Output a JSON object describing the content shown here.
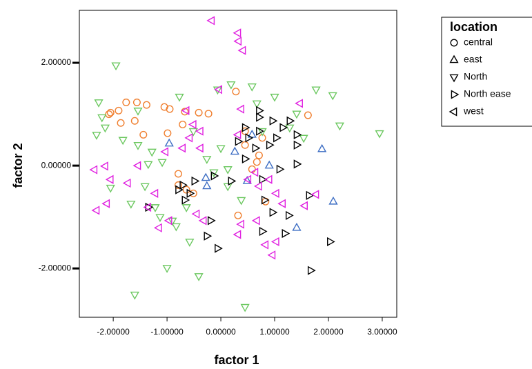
{
  "chart_data": {
    "type": "scatter",
    "x_label": "factor 1",
    "y_label": "factor 2",
    "xlim": [
      -2.63,
      3.27
    ],
    "ylim": [
      -2.95,
      3.02
    ],
    "xticks": [
      {
        "value": -2,
        "label": "-2.00000"
      },
      {
        "value": -1,
        "label": "-1.00000"
      },
      {
        "value": 0,
        "label": "0.00000"
      },
      {
        "value": 1,
        "label": "1.00000"
      },
      {
        "value": 2,
        "label": "2.00000"
      },
      {
        "value": 3,
        "label": "3.00000"
      }
    ],
    "yticks": [
      {
        "value": -2,
        "label": "-2.00000"
      },
      {
        "value": 0,
        "label": "0.00000"
      },
      {
        "value": 2,
        "label": "2.00000"
      }
    ],
    "legend_title": "location",
    "legend_position": "outside-right",
    "series": [
      {
        "name": "central",
        "color": "#f07f2f",
        "marker": "circle",
        "x": [
          -2.05,
          -1.9,
          -1.76,
          -1.56,
          -1.38,
          -1.05,
          -0.95,
          -0.67,
          -0.41,
          -2.08,
          -1.86,
          -1.6,
          -1.44,
          -0.99,
          -0.71,
          -0.79,
          -0.64,
          -0.79,
          -0.51,
          0.28,
          1.62,
          0.32,
          0.83,
          0.45,
          0.71,
          0.58,
          0.77,
          0.45,
          0.67,
          -0.23
        ],
        "values": [
          1.03,
          1.07,
          1.23,
          1.23,
          1.18,
          1.14,
          1.1,
          1.05,
          1.03,
          1.0,
          0.83,
          0.87,
          0.6,
          0.63,
          0.8,
          -0.16,
          -0.47,
          -0.38,
          -0.54,
          1.44,
          0.98,
          -0.97,
          -0.7,
          0.4,
          0.2,
          -0.07,
          0.54,
          0.67,
          0.07,
          1.01
        ]
      },
      {
        "name": "east",
        "color": "#3c6dc3",
        "marker": "triangle-up",
        "x": [
          -0.96,
          -0.28,
          -0.26,
          0.26,
          0.49,
          1.88,
          2.09,
          1.41,
          0.58,
          0.9
        ],
        "values": [
          0.43,
          -0.24,
          -0.4,
          0.27,
          -0.3,
          0.32,
          -0.7,
          -1.21,
          0.6,
          0
        ]
      },
      {
        "name": "North",
        "color": "#6cc860",
        "marker": "triangle-down",
        "x": [
          -1.95,
          -2.27,
          -2.15,
          -2.31,
          -1.82,
          -1.54,
          -1.28,
          -1.09,
          -2.05,
          -1.67,
          -1.41,
          -1.13,
          -1.0,
          -1.6,
          -0.41,
          -0.58,
          -0.9,
          -1.22,
          -0.26,
          -0.13,
          0,
          0.13,
          -0.06,
          0.19,
          0.58,
          0.67,
          1.0,
          1.41,
          1.77,
          2.08,
          2.21,
          2.95,
          0.45,
          -0.51,
          -0.77,
          -1.54,
          -2.21,
          -0.64,
          0.38,
          0.13,
          1.28,
          1.54,
          0.77,
          -1.35,
          -0.83
        ],
        "values": [
          1.95,
          1.23,
          0.74,
          0.6,
          0.5,
          0.4,
          0.27,
          0.07,
          -0.43,
          -0.74,
          -0.4,
          -1.0,
          -1.99,
          -2.51,
          -2.15,
          -1.48,
          -1.07,
          -0.81,
          0.13,
          -0.13,
          0.34,
          -0.07,
          1.48,
          1.58,
          1.54,
          1.21,
          1.34,
          1.01,
          1.48,
          1.37,
          0.78,
          0.63,
          -2.75,
          0.67,
          1.34,
          1.07,
          0.94,
          -0.81,
          -0.67,
          -0.4,
          0.74,
          0.54,
          0.67,
          0.03,
          -1.18
        ]
      },
      {
        "name": "North ease",
        "color": "#000000",
        "marker": "triangle-right",
        "x": [
          -0.71,
          -0.58,
          -0.79,
          -0.49,
          -0.67,
          0.45,
          0.51,
          0.64,
          0.45,
          0.71,
          0.96,
          1.15,
          1.28,
          1.41,
          1.03,
          0.71,
          0.32,
          0.9,
          1.41,
          1.41,
          1.09,
          0.77,
          0.19,
          -0.13,
          -0.19,
          -0.26,
          -0.06,
          0.81,
          0.96,
          1.26,
          0.77,
          1.19,
          1.64,
          2.03,
          1.67,
          -1.35,
          0.71
        ],
        "values": [
          -0.38,
          -0.54,
          -0.47,
          -0.3,
          -0.67,
          0.74,
          0.54,
          0.34,
          0.13,
          0.67,
          0.87,
          0.74,
          0.87,
          0.6,
          0.54,
          1.07,
          0.47,
          0.4,
          0.4,
          0.03,
          -0.07,
          -0.27,
          -0.3,
          -0.2,
          -1.07,
          -1.37,
          -1.61,
          -0.67,
          -0.91,
          -0.97,
          -1.28,
          -1.32,
          -0.58,
          -1.48,
          -2.04,
          -0.81,
          0.94
        ]
      },
      {
        "name": "west",
        "color": "#e020e0",
        "marker": "triangle-left",
        "x": [
          -0.17,
          0.32,
          0.33,
          0.41,
          -0.03,
          0.38,
          -2.35,
          -2.15,
          -2.05,
          -2.31,
          -2.12,
          -1.73,
          -1.54,
          -1.35,
          -1.15,
          -0.96,
          -0.64,
          -0.51,
          -0.58,
          -0.38,
          -0.71,
          -0.38,
          -0.45,
          -0.32,
          0.51,
          0.71,
          0.9,
          0.64,
          1.03,
          1.15,
          0.67,
          1.03,
          0.96,
          0.38,
          0.32,
          0.83,
          1.47,
          1.56,
          1.77,
          0.32,
          -1.03,
          -1.22
        ],
        "values": [
          2.82,
          2.58,
          2.42,
          2.24,
          1.48,
          1.1,
          -0.08,
          -0.01,
          -0.27,
          -0.87,
          -0.74,
          -0.34,
          0,
          -0.81,
          -1.21,
          -1.07,
          1.07,
          0.8,
          0.54,
          0.67,
          0.34,
          0.34,
          -0.94,
          -1.07,
          -0.27,
          -0.4,
          -0.27,
          -0.13,
          -0.54,
          -0.74,
          -1.07,
          -1.48,
          -1.74,
          -1.14,
          -1.34,
          -1.54,
          1.21,
          -0.78,
          -0.56,
          0.6,
          0.27,
          -0.54
        ]
      }
    ]
  }
}
